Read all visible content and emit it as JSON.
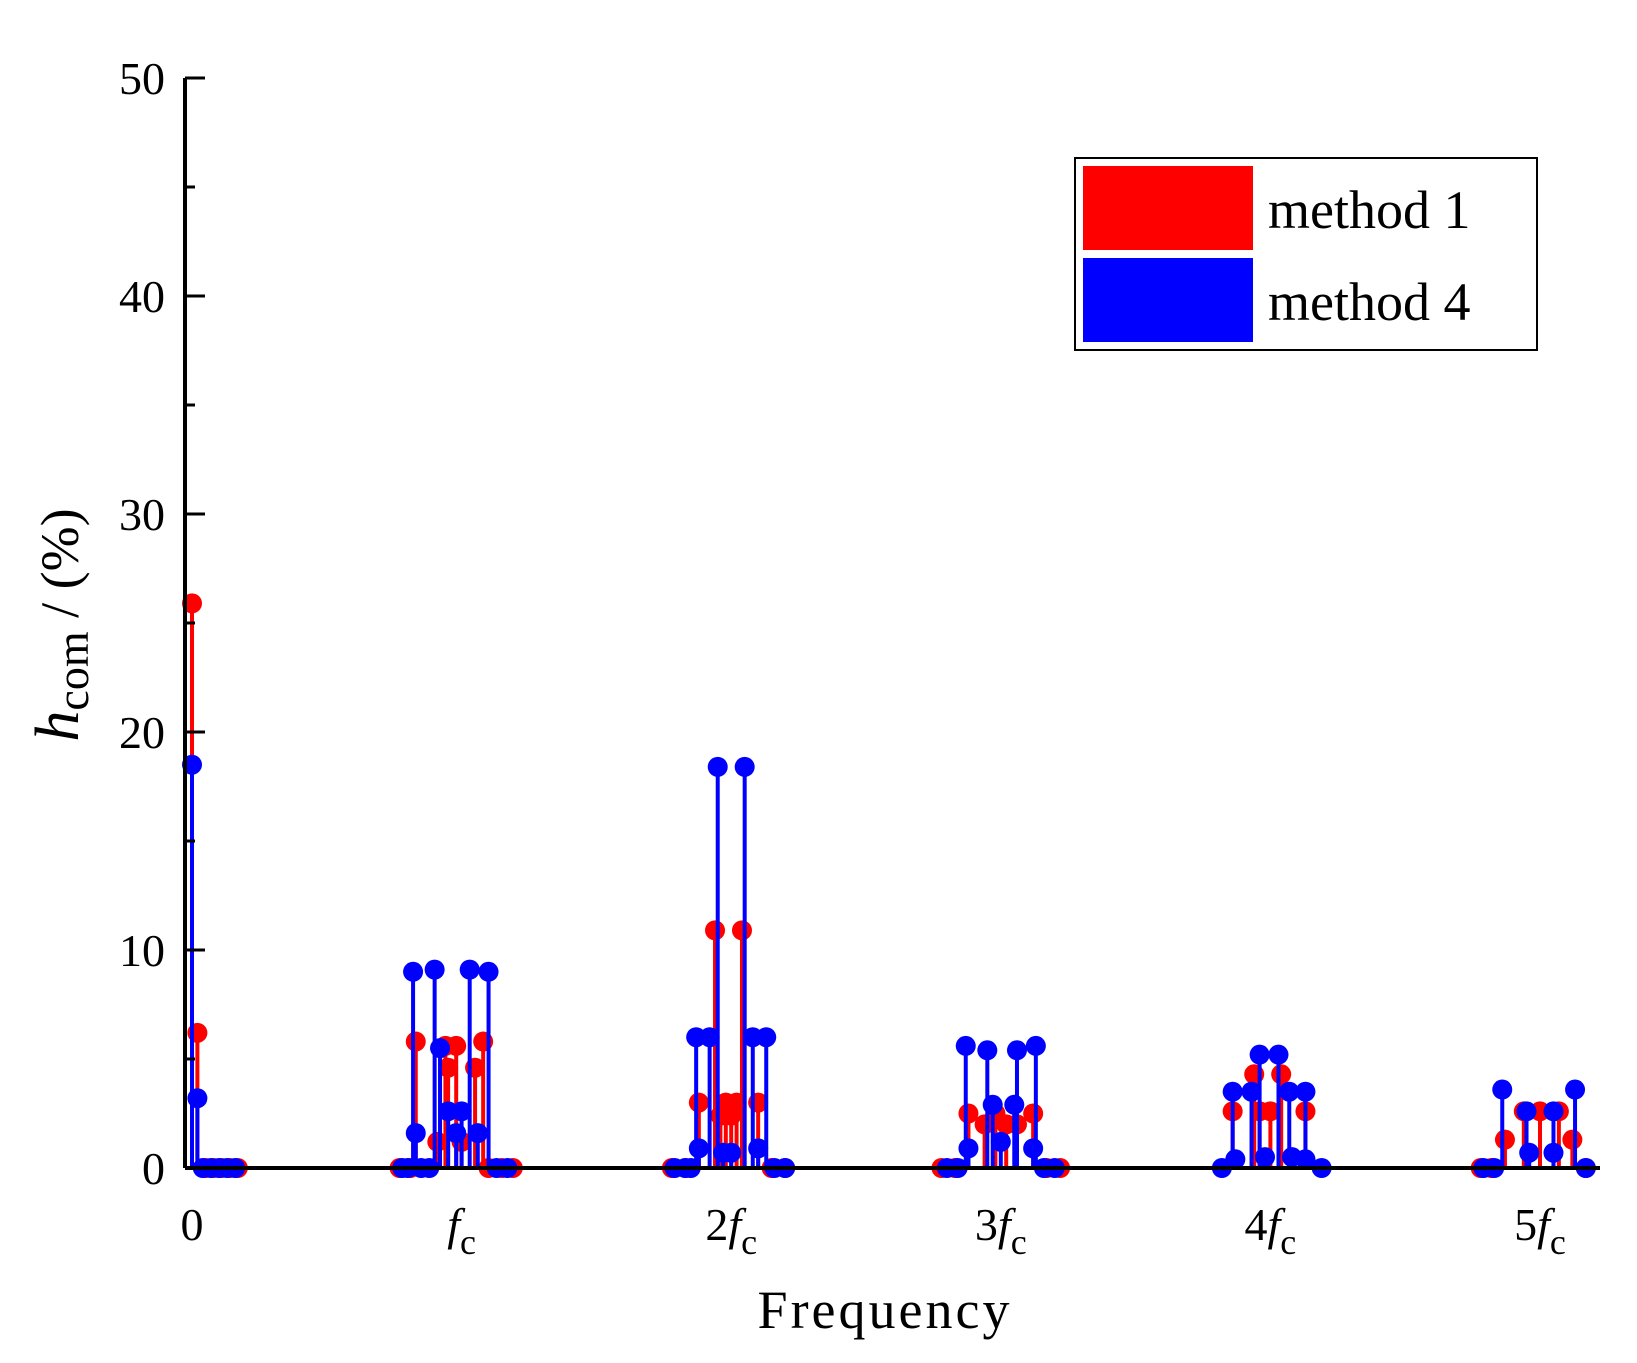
{
  "chart_data": {
    "type": "stem",
    "xlabel": "Frequency",
    "ylabel": {
      "main": "h",
      "subscript": "com",
      "suffix": " / (%)"
    },
    "ylim": [
      0,
      50
    ],
    "xlim": [
      0,
      5.15
    ],
    "yticks": [
      "0",
      "10",
      "20",
      "30",
      "40",
      "50"
    ],
    "xticks": [
      {
        "value": 0,
        "prefix": "0",
        "italic": "",
        "sub": ""
      },
      {
        "value": 1,
        "prefix": "",
        "italic": "f",
        "sub": "c"
      },
      {
        "value": 2,
        "prefix": "2",
        "italic": "f",
        "sub": "c"
      },
      {
        "value": 3,
        "prefix": "3",
        "italic": "f",
        "sub": "c"
      },
      {
        "value": 4,
        "prefix": "4",
        "italic": "f",
        "sub": "c"
      },
      {
        "value": 5,
        "prefix": "5",
        "italic": "f",
        "sub": "c"
      }
    ],
    "legend": {
      "position": "top-right"
    },
    "series": [
      {
        "name": "method 1",
        "color": "#ff0000",
        "points": [
          [
            0.0,
            25.9
          ],
          [
            0.02,
            6.2
          ],
          [
            0.05,
            0
          ],
          [
            0.08,
            0
          ],
          [
            0.11,
            0
          ],
          [
            0.14,
            0
          ],
          [
            0.17,
            0
          ],
          [
            0.77,
            0
          ],
          [
            0.81,
            0
          ],
          [
            0.83,
            5.8
          ],
          [
            0.91,
            1.2
          ],
          [
            0.94,
            5.6
          ],
          [
            0.95,
            4.6
          ],
          [
            0.98,
            5.6
          ],
          [
            1.0,
            1.2
          ],
          [
            1.05,
            4.6
          ],
          [
            1.08,
            5.8
          ],
          [
            1.1,
            0
          ],
          [
            1.15,
            0
          ],
          [
            1.19,
            0
          ],
          [
            1.78,
            0
          ],
          [
            1.83,
            0
          ],
          [
            1.88,
            3.0
          ],
          [
            1.94,
            10.9
          ],
          [
            1.96,
            2.4
          ],
          [
            1.98,
            3.0
          ],
          [
            2.0,
            2.4
          ],
          [
            2.02,
            3.0
          ],
          [
            2.04,
            10.9
          ],
          [
            2.1,
            3.0
          ],
          [
            2.15,
            0
          ],
          [
            2.2,
            0
          ],
          [
            2.78,
            0
          ],
          [
            2.83,
            0
          ],
          [
            2.88,
            2.5
          ],
          [
            2.94,
            2.0
          ],
          [
            2.98,
            2.5
          ],
          [
            3.02,
            2.0
          ],
          [
            3.06,
            2.0
          ],
          [
            3.12,
            2.5
          ],
          [
            3.17,
            0
          ],
          [
            3.22,
            0
          ],
          [
            3.86,
            2.6
          ],
          [
            3.94,
            4.3
          ],
          [
            3.96,
            2.6
          ],
          [
            4.0,
            2.6
          ],
          [
            4.04,
            4.3
          ],
          [
            4.13,
            2.6
          ],
          [
            4.78,
            0
          ],
          [
            4.82,
            0
          ],
          [
            4.87,
            1.3
          ],
          [
            4.94,
            2.6
          ],
          [
            5.0,
            2.6
          ],
          [
            5.07,
            2.6
          ],
          [
            5.12,
            1.3
          ],
          [
            5.17,
            0
          ]
        ]
      },
      {
        "name": "method 4",
        "color": "#0000ff",
        "points": [
          [
            0.0,
            18.5
          ],
          [
            0.02,
            3.2
          ],
          [
            0.04,
            0
          ],
          [
            0.07,
            0
          ],
          [
            0.1,
            0
          ],
          [
            0.13,
            0
          ],
          [
            0.16,
            0
          ],
          [
            0.78,
            0
          ],
          [
            0.8,
            0
          ],
          [
            0.82,
            9.0
          ],
          [
            0.83,
            1.6
          ],
          [
            0.85,
            0
          ],
          [
            0.88,
            0
          ],
          [
            0.9,
            9.1
          ],
          [
            0.92,
            5.5
          ],
          [
            0.95,
            2.6
          ],
          [
            0.98,
            1.6
          ],
          [
            1.0,
            2.6
          ],
          [
            1.03,
            9.1
          ],
          [
            1.06,
            1.6
          ],
          [
            1.1,
            9.0
          ],
          [
            1.13,
            0
          ],
          [
            1.17,
            0
          ],
          [
            1.79,
            0
          ],
          [
            1.83,
            0
          ],
          [
            1.85,
            0
          ],
          [
            1.87,
            6.0
          ],
          [
            1.88,
            0.9
          ],
          [
            1.92,
            6.0
          ],
          [
            1.95,
            18.4
          ],
          [
            1.97,
            0.7
          ],
          [
            2.0,
            0.7
          ],
          [
            2.05,
            18.4
          ],
          [
            2.08,
            6.0
          ],
          [
            2.1,
            0.9
          ],
          [
            2.13,
            6.0
          ],
          [
            2.16,
            0
          ],
          [
            2.2,
            0
          ],
          [
            2.8,
            0
          ],
          [
            2.84,
            0
          ],
          [
            2.87,
            5.6
          ],
          [
            2.88,
            0.9
          ],
          [
            2.95,
            5.4
          ],
          [
            2.97,
            2.9
          ],
          [
            3.0,
            1.2
          ],
          [
            3.05,
            2.9
          ],
          [
            3.06,
            5.4
          ],
          [
            3.13,
            5.6
          ],
          [
            3.12,
            0.9
          ],
          [
            3.16,
            0
          ],
          [
            3.2,
            0
          ],
          [
            3.82,
            0
          ],
          [
            3.86,
            3.5
          ],
          [
            3.87,
            0.4
          ],
          [
            3.93,
            3.5
          ],
          [
            3.96,
            5.2
          ],
          [
            3.98,
            0.5
          ],
          [
            4.03,
            5.2
          ],
          [
            4.07,
            3.5
          ],
          [
            4.08,
            0.5
          ],
          [
            4.13,
            3.5
          ],
          [
            4.13,
            0.4
          ],
          [
            4.19,
            0
          ],
          [
            4.79,
            0
          ],
          [
            4.83,
            0
          ],
          [
            4.86,
            3.6
          ],
          [
            4.95,
            2.6
          ],
          [
            4.96,
            0.7
          ],
          [
            5.05,
            2.6
          ],
          [
            5.05,
            0.7
          ],
          [
            5.13,
            3.6
          ],
          [
            5.17,
            0
          ]
        ]
      }
    ]
  }
}
